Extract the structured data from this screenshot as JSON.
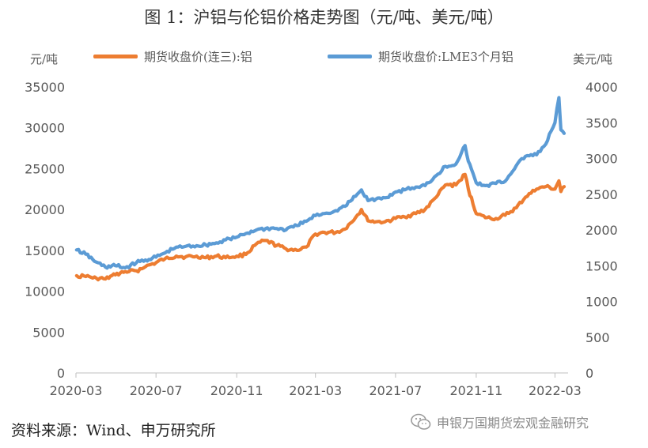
{
  "title": "图 1：沪铝与伦铝价格走势图（元/吨、美元/吨）",
  "source": "资料来源：Wind、申万研究所",
  "watermark": "申银万国期货宏观金融研究",
  "chart_data": {
    "type": "line",
    "left_axis_unit": "元/吨",
    "right_axis_unit": "美元/吨",
    "ylim_left": [
      0,
      35000
    ],
    "ylim_right": [
      0,
      4000
    ],
    "yticks_left": [
      "0",
      "5000",
      "10000",
      "15000",
      "20000",
      "25000",
      "30000",
      "35000"
    ],
    "yticks_right": [
      "0",
      "500",
      "1000",
      "1500",
      "2000",
      "2500",
      "3000",
      "3500",
      "4000"
    ],
    "xlim": [
      "2020-03",
      "2022-03"
    ],
    "xticks": [
      "2020-03",
      "2020-07",
      "2020-11",
      "2021-03",
      "2021-07",
      "2021-11",
      "2022-03"
    ],
    "series": [
      {
        "name": "期货收盘价(连三):铝",
        "axis": "left",
        "color": "#ED7D31",
        "points": [
          [
            "2020-03-02",
            11900
          ],
          [
            "2020-03-16",
            11800
          ],
          [
            "2020-04-01",
            11600
          ],
          [
            "2020-04-15",
            11500
          ],
          [
            "2020-04-30",
            12000
          ],
          [
            "2020-05-15",
            12400
          ],
          [
            "2020-06-01",
            12500
          ],
          [
            "2020-06-15",
            13000
          ],
          [
            "2020-07-01",
            13500
          ],
          [
            "2020-07-15",
            14000
          ],
          [
            "2020-08-01",
            14300
          ],
          [
            "2020-08-15",
            14200
          ],
          [
            "2020-09-01",
            14300
          ],
          [
            "2020-09-15",
            14100
          ],
          [
            "2020-10-01",
            14300
          ],
          [
            "2020-10-15",
            14100
          ],
          [
            "2020-11-01",
            14300
          ],
          [
            "2020-11-15",
            14500
          ],
          [
            "2020-12-01",
            15800
          ],
          [
            "2020-12-15",
            16200
          ],
          [
            "2021-01-01",
            15600
          ],
          [
            "2021-01-15",
            15200
          ],
          [
            "2021-02-01",
            15000
          ],
          [
            "2021-02-15",
            15400
          ],
          [
            "2021-03-01",
            17000
          ],
          [
            "2021-03-15",
            17200
          ],
          [
            "2021-04-01",
            17200
          ],
          [
            "2021-04-15",
            17600
          ],
          [
            "2021-05-01",
            19000
          ],
          [
            "2021-05-10",
            20000
          ],
          [
            "2021-05-20",
            18600
          ],
          [
            "2021-06-01",
            18500
          ],
          [
            "2021-06-15",
            18500
          ],
          [
            "2021-07-01",
            18900
          ],
          [
            "2021-07-15",
            19100
          ],
          [
            "2021-08-01",
            19500
          ],
          [
            "2021-08-15",
            20000
          ],
          [
            "2021-09-01",
            21500
          ],
          [
            "2021-09-15",
            23000
          ],
          [
            "2021-10-01",
            23000
          ],
          [
            "2021-10-15",
            24300
          ],
          [
            "2021-10-20",
            22500
          ],
          [
            "2021-11-01",
            19500
          ],
          [
            "2021-11-15",
            19000
          ],
          [
            "2021-12-01",
            18900
          ],
          [
            "2021-12-15",
            19300
          ],
          [
            "2022-01-01",
            20200
          ],
          [
            "2022-01-15",
            21500
          ],
          [
            "2022-02-01",
            22500
          ],
          [
            "2022-02-15",
            22800
          ],
          [
            "2022-03-01",
            22500
          ],
          [
            "2022-03-07",
            23500
          ],
          [
            "2022-03-10",
            22200
          ],
          [
            "2022-03-15",
            22800
          ]
        ]
      },
      {
        "name": "期货收盘价:LME3个月铝",
        "axis": "right",
        "color": "#5B9BD5",
        "points": [
          [
            "2020-03-02",
            1720
          ],
          [
            "2020-03-16",
            1660
          ],
          [
            "2020-04-01",
            1550
          ],
          [
            "2020-04-15",
            1480
          ],
          [
            "2020-04-30",
            1500
          ],
          [
            "2020-05-15",
            1470
          ],
          [
            "2020-06-01",
            1540
          ],
          [
            "2020-06-15",
            1580
          ],
          [
            "2020-07-01",
            1620
          ],
          [
            "2020-07-15",
            1680
          ],
          [
            "2020-08-01",
            1760
          ],
          [
            "2020-08-15",
            1770
          ],
          [
            "2020-09-01",
            1780
          ],
          [
            "2020-09-15",
            1790
          ],
          [
            "2020-10-01",
            1820
          ],
          [
            "2020-10-15",
            1860
          ],
          [
            "2020-11-01",
            1900
          ],
          [
            "2020-11-15",
            1950
          ],
          [
            "2020-12-01",
            2000
          ],
          [
            "2020-12-15",
            2020
          ],
          [
            "2021-01-01",
            2020
          ],
          [
            "2021-01-15",
            2000
          ],
          [
            "2021-02-01",
            2060
          ],
          [
            "2021-02-15",
            2120
          ],
          [
            "2021-03-01",
            2200
          ],
          [
            "2021-03-15",
            2230
          ],
          [
            "2021-04-01",
            2270
          ],
          [
            "2021-04-15",
            2330
          ],
          [
            "2021-05-01",
            2470
          ],
          [
            "2021-05-10",
            2560
          ],
          [
            "2021-05-20",
            2410
          ],
          [
            "2021-06-01",
            2430
          ],
          [
            "2021-06-15",
            2450
          ],
          [
            "2021-07-01",
            2530
          ],
          [
            "2021-07-15",
            2560
          ],
          [
            "2021-08-01",
            2600
          ],
          [
            "2021-08-15",
            2620
          ],
          [
            "2021-09-01",
            2760
          ],
          [
            "2021-09-15",
            2890
          ],
          [
            "2021-10-01",
            2920
          ],
          [
            "2021-10-15",
            3180
          ],
          [
            "2021-10-20",
            2960
          ],
          [
            "2021-11-01",
            2660
          ],
          [
            "2021-11-15",
            2620
          ],
          [
            "2021-12-01",
            2650
          ],
          [
            "2021-12-15",
            2680
          ],
          [
            "2022-01-01",
            2900
          ],
          [
            "2022-01-15",
            3030
          ],
          [
            "2022-02-01",
            3050
          ],
          [
            "2022-02-15",
            3200
          ],
          [
            "2022-03-01",
            3500
          ],
          [
            "2022-03-07",
            3850
          ],
          [
            "2022-03-10",
            3400
          ],
          [
            "2022-03-15",
            3350
          ]
        ]
      }
    ]
  }
}
